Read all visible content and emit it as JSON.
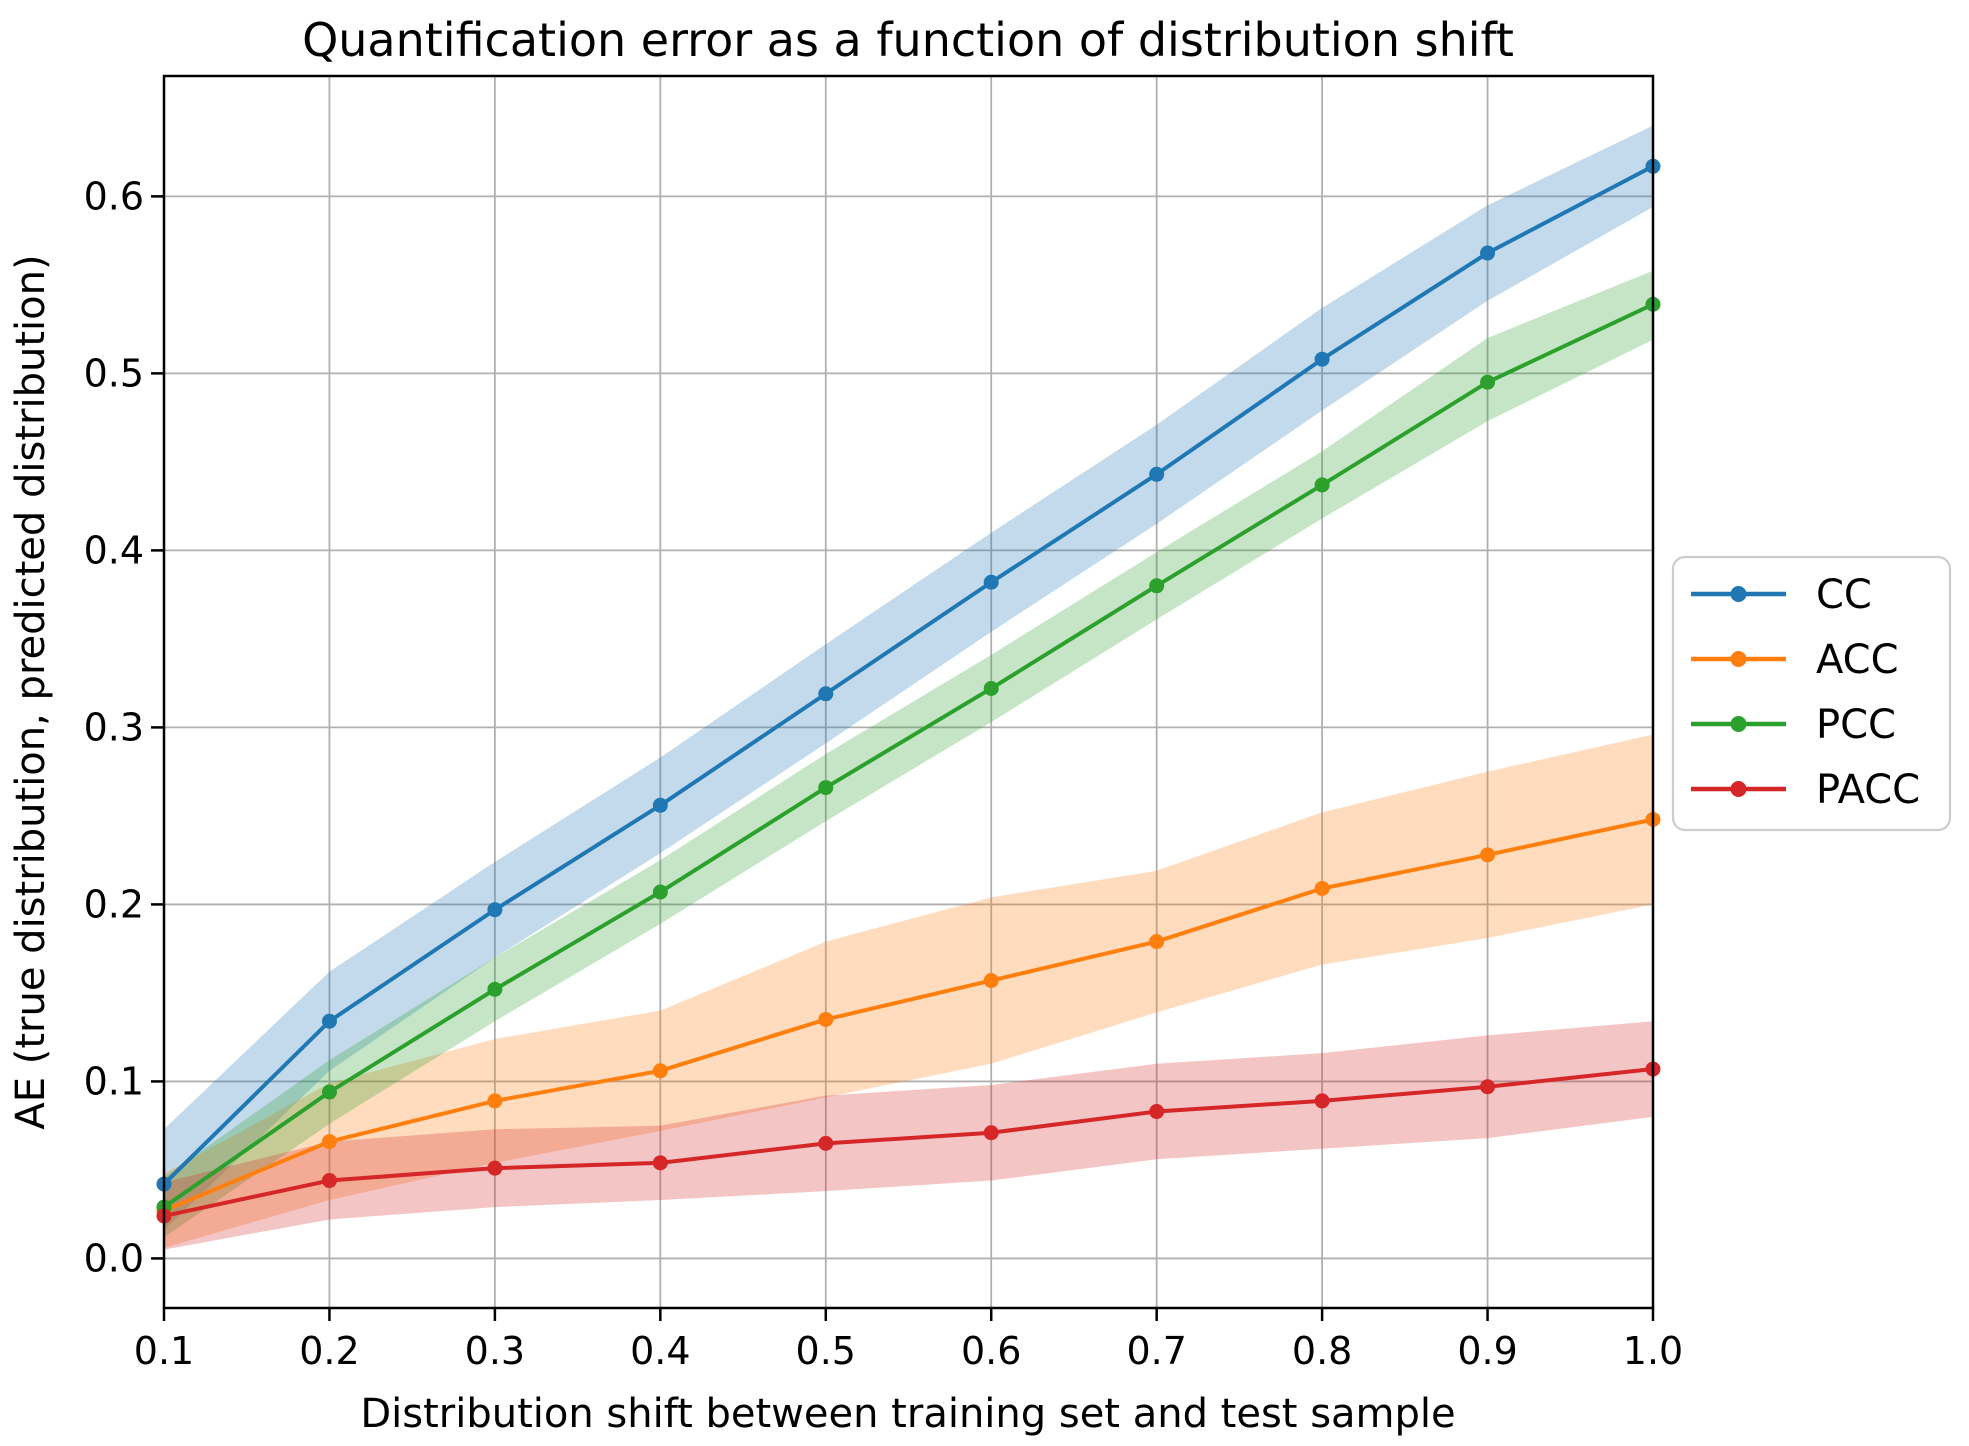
{
  "page": {
    "background": "#ffffff"
  },
  "chart_data": {
    "type": "line",
    "title": "Quantification error as a function of distribution shift",
    "xlabel": "Distribution shift between training set and test sample",
    "ylabel": "AE (true distribution, predicted distribution)",
    "x": [
      0.1,
      0.2,
      0.3,
      0.4,
      0.5,
      0.6,
      0.7,
      0.8,
      0.9,
      1.0
    ],
    "xlim": [
      0.1,
      1.0
    ],
    "ylim": [
      -0.028,
      0.668
    ],
    "xticks": {
      "values": [
        0.1,
        0.2,
        0.3,
        0.4,
        0.5,
        0.6,
        0.7,
        0.8,
        0.9,
        1.0
      ],
      "labels": [
        "0.1",
        "0.2",
        "0.3",
        "0.4",
        "0.5",
        "0.6",
        "0.7",
        "0.8",
        "0.9",
        "1.0"
      ]
    },
    "yticks": {
      "values": [
        0.0,
        0.1,
        0.2,
        0.3,
        0.4,
        0.5,
        0.6
      ],
      "labels": [
        "0.0",
        "0.1",
        "0.2",
        "0.3",
        "0.4",
        "0.5",
        "0.6"
      ]
    },
    "grid": true,
    "grid_color": "#b0b0b0",
    "spine_color": "#000000",
    "band_alpha": 0.27,
    "marker": "circle",
    "legend": {
      "position": "outside-right",
      "border_color": "#cccccc",
      "background": "#ffffff",
      "entries": [
        "CC",
        "ACC",
        "PCC",
        "PACC"
      ]
    },
    "series": [
      {
        "name": "CC",
        "color": "#1f77b4",
        "values": [
          0.042,
          0.134,
          0.197,
          0.256,
          0.319,
          0.382,
          0.443,
          0.508,
          0.568,
          0.617
        ],
        "band_lower": [
          0.016,
          0.106,
          0.17,
          0.229,
          0.291,
          0.354,
          0.415,
          0.479,
          0.541,
          0.594
        ],
        "band_upper": [
          0.073,
          0.162,
          0.224,
          0.283,
          0.347,
          0.41,
          0.471,
          0.537,
          0.595,
          0.64
        ]
      },
      {
        "name": "ACC",
        "color": "#ff7f0e",
        "values": [
          0.027,
          0.066,
          0.089,
          0.106,
          0.135,
          0.157,
          0.179,
          0.209,
          0.228,
          0.248
        ],
        "band_lower": [
          0.006,
          0.033,
          0.054,
          0.072,
          0.091,
          0.11,
          0.139,
          0.166,
          0.181,
          0.2
        ],
        "band_upper": [
          0.048,
          0.099,
          0.124,
          0.14,
          0.179,
          0.204,
          0.219,
          0.252,
          0.275,
          0.296
        ]
      },
      {
        "name": "PCC",
        "color": "#2ca02c",
        "values": [
          0.029,
          0.094,
          0.152,
          0.207,
          0.266,
          0.322,
          0.38,
          0.437,
          0.495,
          0.539
        ],
        "band_lower": [
          0.012,
          0.076,
          0.134,
          0.189,
          0.247,
          0.303,
          0.361,
          0.418,
          0.473,
          0.519
        ],
        "band_upper": [
          0.046,
          0.112,
          0.17,
          0.225,
          0.285,
          0.341,
          0.399,
          0.456,
          0.52,
          0.558
        ]
      },
      {
        "name": "PACC",
        "color": "#d62728",
        "values": [
          0.024,
          0.044,
          0.051,
          0.054,
          0.065,
          0.071,
          0.083,
          0.089,
          0.097,
          0.107
        ],
        "band_lower": [
          0.005,
          0.022,
          0.029,
          0.033,
          0.038,
          0.044,
          0.056,
          0.062,
          0.068,
          0.08
        ],
        "band_upper": [
          0.043,
          0.066,
          0.073,
          0.075,
          0.092,
          0.098,
          0.11,
          0.116,
          0.126,
          0.134
        ]
      }
    ]
  }
}
